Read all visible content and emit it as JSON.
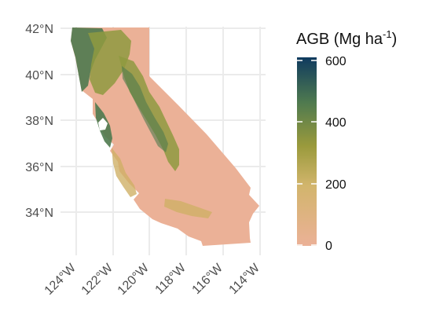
{
  "map": {
    "lat_ticks": [
      "42°N",
      "40°N",
      "38°N",
      "36°N",
      "34°N"
    ],
    "lon_ticks": [
      "124°W",
      "122°W",
      "120°W",
      "118°W",
      "116°W",
      "114°W"
    ],
    "legend": {
      "title_main": "AGB (Mg ha",
      "title_sup": "-1",
      "title_close": ")",
      "ticks": [
        "600",
        "400",
        "200",
        "0"
      ],
      "colors": [
        "#0f3a5f",
        "#4f7a4f",
        "#9a9a3c",
        "#d2b56c",
        "#ebb197"
      ]
    },
    "colors": {
      "land_base": "#ebb197",
      "vegetation_low": "#cfb067",
      "vegetation_mid": "#8f9a3f",
      "vegetation_high": "#4f7a4f",
      "grid": "#ebebeb",
      "water": "#ffffff"
    }
  }
}
